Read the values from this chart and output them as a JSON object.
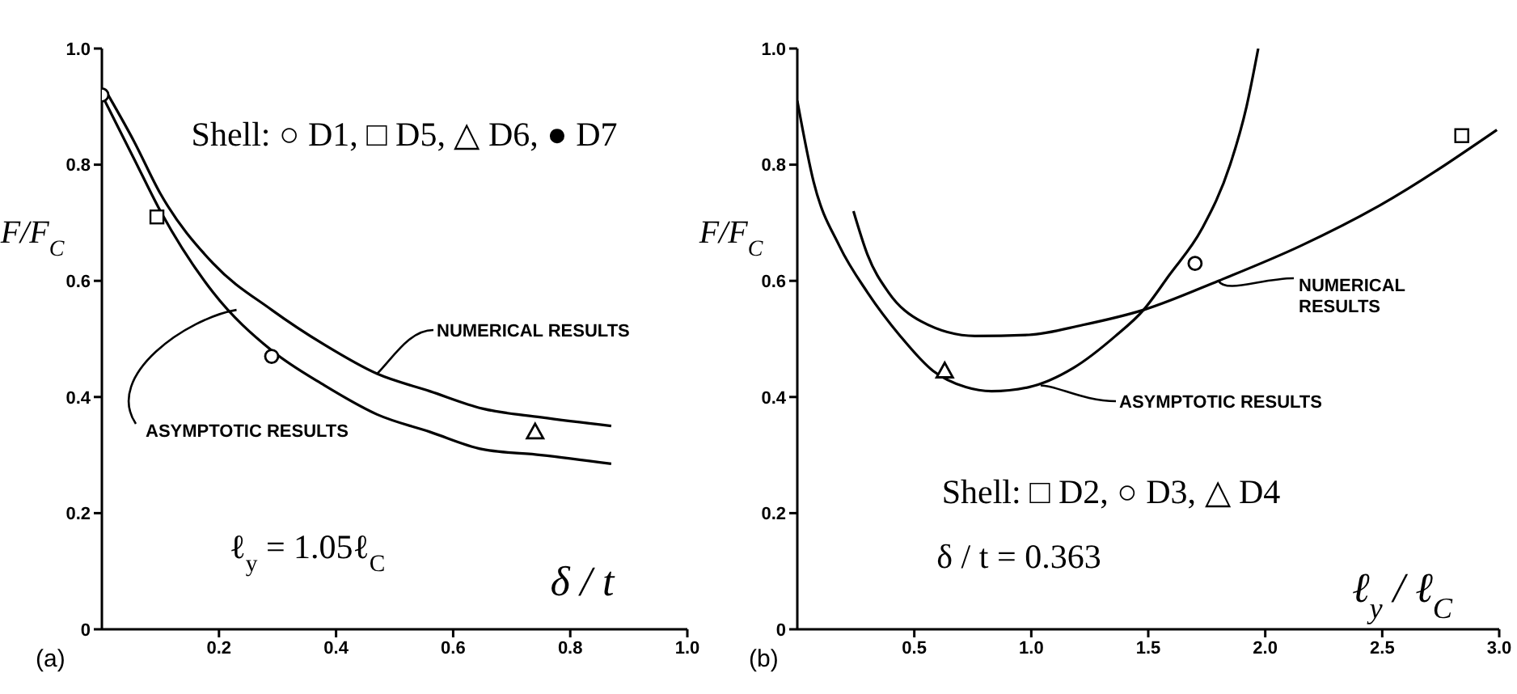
{
  "chart_data": [
    {
      "type": "line",
      "title": "(a)",
      "xlabel": "δ / t",
      "ylabel": "F/F$_{C}$",
      "xlim": [
        0,
        1.0
      ],
      "xticks": [
        0.2,
        0.4,
        0.6,
        0.8,
        {
          "value": 1.0,
          "label": "1.0"
        }
      ],
      "ylim": [
        0,
        1.0
      ],
      "yticks": [
        0,
        0.2,
        0.4,
        0.6,
        0.8,
        {
          "value": 1.0,
          "label": "1.0"
        }
      ],
      "grid": false,
      "line_style": "solid",
      "series": [
        {
          "marker": "none",
          "color": "#000000",
          "x": [
            0.005,
            0.055,
            0.1,
            0.19,
            0.29,
            0.38,
            0.47,
            0.56,
            0.65,
            0.75,
            0.87
          ],
          "values": [
            0.93,
            0.84,
            0.75,
            0.63,
            0.55,
            0.49,
            0.44,
            0.41,
            0.38,
            0.365,
            0.35
          ]
        },
        {
          "marker": "none",
          "color": "#000000",
          "x": [
            0.0,
            0.055,
            0.1,
            0.19,
            0.29,
            0.38,
            0.47,
            0.56,
            0.65,
            0.75,
            0.87
          ],
          "values": [
            0.92,
            0.81,
            0.72,
            0.58,
            0.48,
            0.42,
            0.37,
            0.34,
            0.31,
            0.3,
            0.285
          ]
        },
        {
          "type": "scatter",
          "marker": "circle",
          "color": "#000000",
          "x": [
            0.29
          ],
          "values": [
            0.47
          ]
        },
        {
          "type": "scatter",
          "marker": "square",
          "color": "#000000",
          "x": [
            0.094
          ],
          "values": [
            0.71
          ]
        },
        {
          "type": "scatter",
          "marker": "triangle",
          "color": "#000000",
          "x": [
            0.74
          ],
          "values": [
            0.34
          ]
        },
        {
          "type": "scatter",
          "marker": "circle",
          "color": "#000000",
          "x": [
            0.0
          ],
          "values": [
            0.92
          ]
        }
      ],
      "annotations": [
        "Shell: ○ D1, □ D5, △ D6, ● D7",
        "ℓ$_{y}$ = 1.05ℓ$_{C}$",
        {
          "text": "NUMERICAL RESULTS",
          "x": 0.47,
          "y": 0.44
        },
        {
          "text": "ASYMPTOTIC RESULTS",
          "x": 0.23,
          "y": 0.55
        }
      ]
    },
    {
      "type": "line",
      "title": "(b)",
      "xlabel": "ℓ$_{y}$ / ℓ$_{C}$",
      "ylabel": "F/F$_{C}$",
      "xlim": [
        0,
        3.0
      ],
      "xticks": [
        0.5,
        {
          "value": 1.0,
          "label": "1.0"
        },
        1.5,
        {
          "value": 2.0,
          "label": "2.0"
        },
        2.5,
        {
          "value": 3.0,
          "label": "3.0"
        }
      ],
      "ylim": [
        0,
        1.0
      ],
      "yticks": [
        0,
        0.2,
        0.4,
        0.6,
        0.8,
        {
          "value": 1.0,
          "label": "1.0"
        }
      ],
      "grid": false,
      "line_style": "solid",
      "series": [
        {
          "marker": "none",
          "color": "#000000",
          "x": [
            0.24,
            0.3,
            0.39,
            0.53,
            0.76,
            0.99,
            1.22,
            1.48,
            1.8,
            2.15,
            2.49,
            2.99
          ],
          "values": [
            0.72,
            0.645,
            0.58,
            0.53,
            0.505,
            0.507,
            0.524,
            0.55,
            0.6,
            0.66,
            0.73,
            0.86
          ]
        },
        {
          "marker": "none",
          "color": "#000000",
          "x": [
            0.0,
            0.07,
            0.18,
            0.3,
            0.44,
            0.58,
            0.72,
            0.83,
            0.99,
            1.18,
            1.36,
            1.48,
            1.59,
            1.73,
            1.85,
            1.92,
            1.97
          ],
          "values": [
            0.91,
            0.77,
            0.66,
            0.58,
            0.505,
            0.445,
            0.417,
            0.41,
            0.417,
            0.45,
            0.505,
            0.55,
            0.61,
            0.69,
            0.8,
            0.9,
            1.0
          ]
        },
        {
          "type": "scatter",
          "marker": "square",
          "color": "#000000",
          "x": [
            2.84
          ],
          "values": [
            0.85
          ]
        },
        {
          "type": "scatter",
          "marker": "circle",
          "color": "#000000",
          "x": [
            1.7
          ],
          "values": [
            0.63
          ]
        },
        {
          "type": "scatter",
          "marker": "triangle",
          "color": "#000000",
          "x": [
            0.63
          ],
          "values": [
            0.445
          ]
        }
      ],
      "annotations": [
        {
          "text": "NUMERICAL RESULTS",
          "x": 1.8,
          "y": 0.6
        },
        {
          "text": "ASYMPTOTIC RESULTS",
          "x": 1.04,
          "y": 0.42
        },
        "Shell: □ D2, ○ D3, △ D4",
        "δ / t = 0.363"
      ]
    }
  ]
}
